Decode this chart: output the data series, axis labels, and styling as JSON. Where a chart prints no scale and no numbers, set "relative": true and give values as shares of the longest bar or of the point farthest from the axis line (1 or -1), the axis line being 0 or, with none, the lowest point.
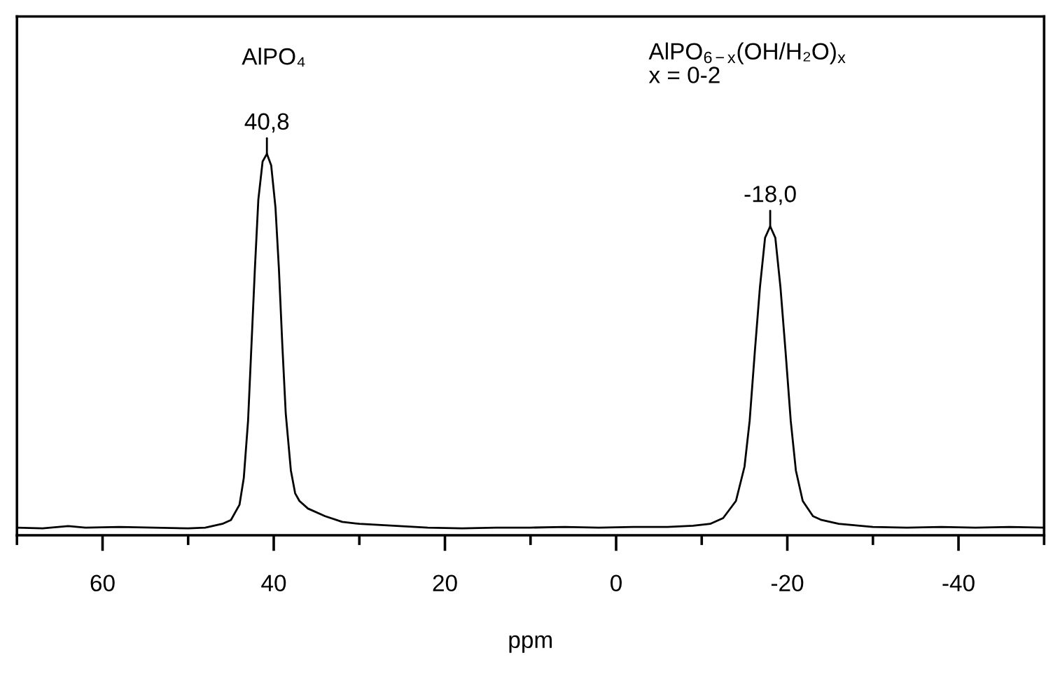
{
  "chart_data": {
    "type": "line",
    "relative": true,
    "xlabel": "ppm",
    "xlim": [
      70,
      -50
    ],
    "xticks": [
      60,
      40,
      20,
      0,
      -20,
      -40
    ],
    "color": "#000000",
    "line_style": "solid",
    "marker": "none",
    "grid": false,
    "tick_labels": "x",
    "x": [
      70,
      67,
      64,
      62,
      58,
      54,
      50,
      48,
      46,
      45,
      44,
      43.5,
      43,
      42.6,
      42.2,
      41.8,
      41.3,
      40.8,
      40.3,
      39.8,
      39.4,
      39.0,
      38.6,
      38,
      37.5,
      37,
      36,
      34,
      32,
      30,
      26,
      22,
      18,
      14,
      10,
      6,
      2,
      -2,
      -6,
      -9,
      -11,
      -12.5,
      -14,
      -15,
      -15.6,
      -16.2,
      -16.8,
      -17.4,
      -18,
      -18.6,
      -19.2,
      -19.8,
      -20.4,
      -21,
      -21.8,
      -23,
      -24,
      -26,
      -30,
      -34,
      -38,
      -42,
      -46,
      -50
    ],
    "values": [
      0.02,
      0.018,
      0.024,
      0.02,
      0.022,
      0.02,
      0.018,
      0.02,
      0.03,
      0.04,
      0.08,
      0.15,
      0.3,
      0.5,
      0.7,
      0.88,
      0.98,
      1.0,
      0.97,
      0.86,
      0.7,
      0.5,
      0.32,
      0.17,
      0.11,
      0.09,
      0.07,
      0.05,
      0.035,
      0.03,
      0.025,
      0.02,
      0.018,
      0.02,
      0.02,
      0.022,
      0.02,
      0.022,
      0.022,
      0.025,
      0.03,
      0.045,
      0.09,
      0.18,
      0.3,
      0.48,
      0.65,
      0.78,
      0.81,
      0.78,
      0.65,
      0.48,
      0.3,
      0.17,
      0.09,
      0.05,
      0.04,
      0.03,
      0.022,
      0.02,
      0.022,
      0.02,
      0.022,
      0.02
    ],
    "annotations": [
      {
        "text": "40,8",
        "x": 40.8,
        "y": 1.0
      },
      {
        "text": "-18,0",
        "x": -18.0,
        "y": 0.81
      },
      "AlPO₄",
      "AlPO$_{6−x}$(OH/H₂O)$_{x}$\nx = 0-2"
    ]
  }
}
